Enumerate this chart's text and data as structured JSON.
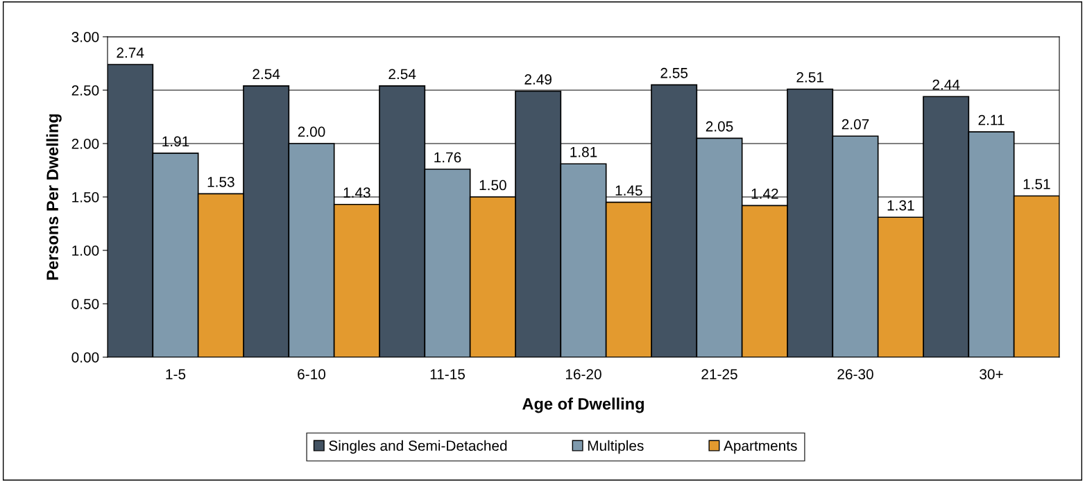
{
  "chart_data": {
    "type": "bar",
    "xlabel": "Age of Dwelling",
    "ylabel": "Persons Per Dwelling",
    "categories": [
      "1-5",
      "6-10",
      "11-15",
      "16-20",
      "21-25",
      "26-30",
      "30+"
    ],
    "series": [
      {
        "name": "Singles and Semi-Detached",
        "color": "#435363",
        "values": [
          2.74,
          2.54,
          2.54,
          2.49,
          2.55,
          2.51,
          2.44
        ],
        "value_labels": [
          "2.74",
          "2.54",
          "2.54",
          "2.49",
          "2.55",
          "2.51",
          "2.44"
        ]
      },
      {
        "name": "Multiples",
        "color": "#7f9aad",
        "values": [
          1.91,
          2.0,
          1.76,
          1.81,
          2.05,
          2.07,
          2.11
        ],
        "value_labels": [
          "1.91",
          "2.00",
          "1.76",
          "1.81",
          "2.05",
          "2.07",
          "2.11"
        ]
      },
      {
        "name": "Apartments",
        "color": "#e39a2f",
        "values": [
          1.53,
          1.43,
          1.5,
          1.45,
          1.42,
          1.31,
          1.51
        ],
        "value_labels": [
          "1.53",
          "1.43",
          "1.50",
          "1.45",
          "1.42",
          "1.31",
          "1.51"
        ]
      }
    ],
    "ylim": [
      0,
      3
    ],
    "yticks": [
      {
        "value": 0,
        "label": "0.00"
      },
      {
        "value": 0.5,
        "label": "0.50"
      },
      {
        "value": 1,
        "label": "1.00"
      },
      {
        "value": 1.5,
        "label": "1.50"
      },
      {
        "value": 2,
        "label": "2.00"
      },
      {
        "value": 2.5,
        "label": "2.50"
      },
      {
        "value": 3,
        "label": "3.00"
      }
    ],
    "grid": "y",
    "legend": "bottom"
  }
}
